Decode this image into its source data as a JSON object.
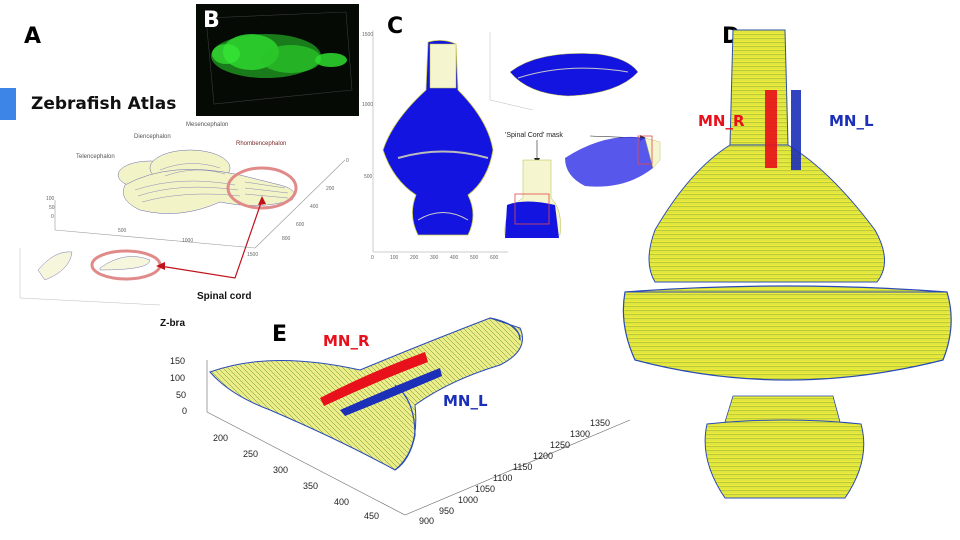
{
  "panels": {
    "a": "A",
    "b": "B",
    "c": "C",
    "d": "D",
    "e": "E"
  },
  "panel_a": {
    "title": "Zebrafish Atlas",
    "regions": {
      "telencephalon": "Telencephalon",
      "diencephalon": "Diencephalon",
      "mesencephalon": "Mesencephalon",
      "rhombencephalon": "Rhombencephalon"
    },
    "spinal_cord_label": "Spinal cord",
    "zbrain_label": "Z-bra",
    "z_ticks": [
      "100",
      "50",
      "0"
    ],
    "x_ticks": [
      "500",
      "1000",
      "1500"
    ],
    "y_ticks": [
      "0",
      "200",
      "400",
      "600",
      "800"
    ]
  },
  "panel_c": {
    "mask_label": "'Spinal Cord' mask",
    "y_ticks": [
      "1500",
      "1000",
      "500"
    ],
    "x_ticks": [
      "0",
      "100",
      "200",
      "300",
      "400",
      "500",
      "600"
    ]
  },
  "panel_d": {
    "mn_right": "MN_R",
    "mn_left": "MN_L"
  },
  "panel_e": {
    "mn_right": "MN_R",
    "mn_left": "MN_L",
    "z_ticks": [
      "150",
      "100",
      "50",
      "0"
    ],
    "y_ticks": [
      "200",
      "250",
      "300",
      "350",
      "400",
      "450"
    ],
    "x_ticks": [
      "900",
      "950",
      "1000",
      "1050",
      "1100",
      "1150",
      "1200",
      "1250",
      "1300",
      "1350"
    ]
  },
  "colors": {
    "accent": "#3d85e6",
    "right_neurons": "#e8101a",
    "left_neurons": "#1c2fb8",
    "mesh_yellow": "#e6e61a",
    "mesh_green": "#5a8a3a",
    "mesh_blue": "#2a4ab8",
    "fluor_green": "#2fdc2f"
  }
}
